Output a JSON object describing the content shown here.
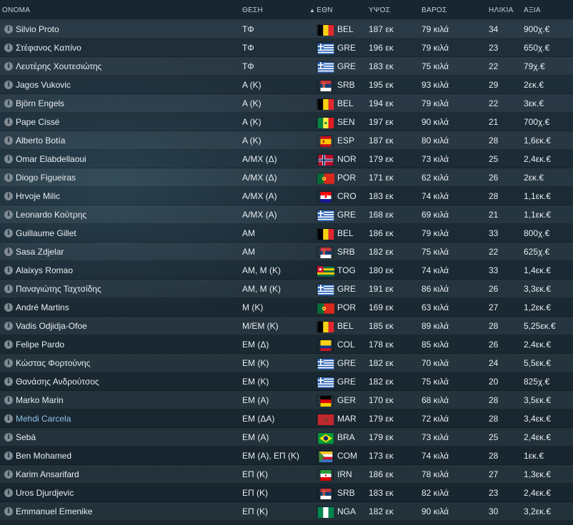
{
  "header": {
    "name": "ΟΝΟΜΑ",
    "position": "ΘΕΣΗ",
    "sort_arrow": "▲",
    "nat": "ΕΘΝ",
    "height": "ΥΨΟΣ",
    "weight": "ΒΑΡΟΣ",
    "age": "ΗΛΙΚΙΑ",
    "value": "ΑΞΙΑ"
  },
  "info_glyph": "i",
  "players": [
    {
      "name": "Silvio Proto",
      "pos": "ΤΦ",
      "nat": "BEL",
      "flag": "flag-bel",
      "height": "187 εκ",
      "weight": "79 κιλά",
      "age": "34",
      "value": "900χ.€"
    },
    {
      "name": "Στέφανος Καπίνο",
      "pos": "ΤΦ",
      "nat": "GRE",
      "flag": "flag-gre",
      "height": "196 εκ",
      "weight": "79 κιλά",
      "age": "23",
      "value": "650χ.€"
    },
    {
      "name": "Λευτέρης Χουτεσιώτης",
      "pos": "ΤΦ",
      "nat": "GRE",
      "flag": "flag-gre",
      "height": "183 εκ",
      "weight": "75 κιλά",
      "age": "22",
      "value": "79χ.€"
    },
    {
      "name": "Jagos Vukovic",
      "pos": "Α (Κ)",
      "nat": "SRB",
      "flag": "flag-srb",
      "height": "195 εκ",
      "weight": "93 κιλά",
      "age": "29",
      "value": "2εκ.€"
    },
    {
      "name": "Björn Engels",
      "pos": "Α (Κ)",
      "nat": "BEL",
      "flag": "flag-bel",
      "height": "194 εκ",
      "weight": "79 κιλά",
      "age": "22",
      "value": "3εκ.€"
    },
    {
      "name": "Pape Cissé",
      "pos": "Α (Κ)",
      "nat": "SEN",
      "flag": "flag-sen",
      "height": "197 εκ",
      "weight": "90 κιλά",
      "age": "21",
      "value": "700χ.€"
    },
    {
      "name": "Alberto Botía",
      "pos": "Α (Κ)",
      "nat": "ESP",
      "flag": "flag-esp",
      "height": "187 εκ",
      "weight": "80 κιλά",
      "age": "28",
      "value": "1,6εκ.€"
    },
    {
      "name": "Omar Elabdellaoui",
      "pos": "Α/ΜΧ (Δ)",
      "nat": "NOR",
      "flag": "flag-nor",
      "height": "179 εκ",
      "weight": "73 κιλά",
      "age": "25",
      "value": "2,4εκ.€"
    },
    {
      "name": "Diogo Figueiras",
      "pos": "Α/ΜΧ (Δ)",
      "nat": "POR",
      "flag": "flag-por",
      "height": "171 εκ",
      "weight": "62 κιλά",
      "age": "26",
      "value": "2εκ.€"
    },
    {
      "name": "Hrvoje Milic",
      "pos": "Α/ΜΧ (Α)",
      "nat": "CRO",
      "flag": "flag-cro",
      "height": "183 εκ",
      "weight": "74 κιλά",
      "age": "28",
      "value": "1,1εκ.€"
    },
    {
      "name": "Leonardo Κούτρης",
      "pos": "Α/ΜΧ (Α)",
      "nat": "GRE",
      "flag": "flag-gre",
      "height": "168 εκ",
      "weight": "69 κιλά",
      "age": "21",
      "value": "1,1εκ.€"
    },
    {
      "name": "Guillaume Gillet",
      "pos": "ΑΜ",
      "nat": "BEL",
      "flag": "flag-bel",
      "height": "186 εκ",
      "weight": "79 κιλά",
      "age": "33",
      "value": "800χ.€"
    },
    {
      "name": "Sasa Zdjelar",
      "pos": "ΑΜ",
      "nat": "SRB",
      "flag": "flag-srb",
      "height": "182 εκ",
      "weight": "75 κιλά",
      "age": "22",
      "value": "625χ.€"
    },
    {
      "name": "Alaixys Romao",
      "pos": "ΑΜ, Μ (Κ)",
      "nat": "TOG",
      "flag": "flag-tog",
      "height": "180 εκ",
      "weight": "74 κιλά",
      "age": "33",
      "value": "1,4εκ.€"
    },
    {
      "name": "Παναγιώτης Ταχτσίδης",
      "pos": "ΑΜ, Μ (Κ)",
      "nat": "GRE",
      "flag": "flag-gre",
      "height": "191 εκ",
      "weight": "86 κιλά",
      "age": "26",
      "value": "3,3εκ.€"
    },
    {
      "name": "André Martins",
      "pos": "Μ (Κ)",
      "nat": "POR",
      "flag": "flag-por",
      "height": "169 εκ",
      "weight": "63 κιλά",
      "age": "27",
      "value": "1,2εκ.€"
    },
    {
      "name": "Vadis Odjidja-Ofoe",
      "pos": "Μ/ΕΜ (Κ)",
      "nat": "BEL",
      "flag": "flag-bel",
      "height": "185 εκ",
      "weight": "89 κιλά",
      "age": "28",
      "value": "5,25εκ.€"
    },
    {
      "name": "Felipe Pardo",
      "pos": "ΕΜ (Δ)",
      "nat": "COL",
      "flag": "flag-col",
      "height": "178 εκ",
      "weight": "85 κιλά",
      "age": "26",
      "value": "2,4εκ.€"
    },
    {
      "name": "Κώστας Φορτούνης",
      "pos": "ΕΜ (Κ)",
      "nat": "GRE",
      "flag": "flag-gre",
      "height": "182 εκ",
      "weight": "70 κιλά",
      "age": "24",
      "value": "5,5εκ.€"
    },
    {
      "name": "Θανάσης Ανδρούτσος",
      "pos": "ΕΜ (Κ)",
      "nat": "GRE",
      "flag": "flag-gre",
      "height": "182 εκ",
      "weight": "75 κιλά",
      "age": "20",
      "value": "825χ.€"
    },
    {
      "name": "Marko Marin",
      "pos": "ΕΜ (Α)",
      "nat": "GER",
      "flag": "flag-ger",
      "height": "170 εκ",
      "weight": "68 κιλά",
      "age": "28",
      "value": "3,5εκ.€"
    },
    {
      "name": "Mehdi Carcela",
      "pos": "ΕΜ (ΔΑ)",
      "nat": "MAR",
      "flag": "flag-mar",
      "height": "179 εκ",
      "weight": "72 κιλά",
      "age": "28",
      "value": "3,4εκ.€",
      "highlight": true
    },
    {
      "name": "Sebá",
      "pos": "ΕΜ (Α)",
      "nat": "BRA",
      "flag": "flag-bra",
      "height": "179 εκ",
      "weight": "73 κιλά",
      "age": "25",
      "value": "2,4εκ.€"
    },
    {
      "name": "Ben Mohamed",
      "pos": "ΕΜ (Α), ΕΠ (Κ)",
      "nat": "COM",
      "flag": "flag-com",
      "height": "173 εκ",
      "weight": "74 κιλά",
      "age": "28",
      "value": "1εκ.€"
    },
    {
      "name": "Karim Ansarifard",
      "pos": "ΕΠ (Κ)",
      "nat": "IRN",
      "flag": "flag-irn",
      "height": "186 εκ",
      "weight": "78 κιλά",
      "age": "27",
      "value": "1,3εκ.€"
    },
    {
      "name": "Uros Djurdjevic",
      "pos": "ΕΠ (Κ)",
      "nat": "SRB",
      "flag": "flag-srb",
      "height": "183 εκ",
      "weight": "82 κιλά",
      "age": "23",
      "value": "2,4εκ.€"
    },
    {
      "name": "Emmanuel Emenike",
      "pos": "ΕΠ (Κ)",
      "nat": "NGA",
      "flag": "flag-nga",
      "height": "182 εκ",
      "weight": "90 κιλά",
      "age": "30",
      "value": "3,2εκ.€"
    }
  ]
}
